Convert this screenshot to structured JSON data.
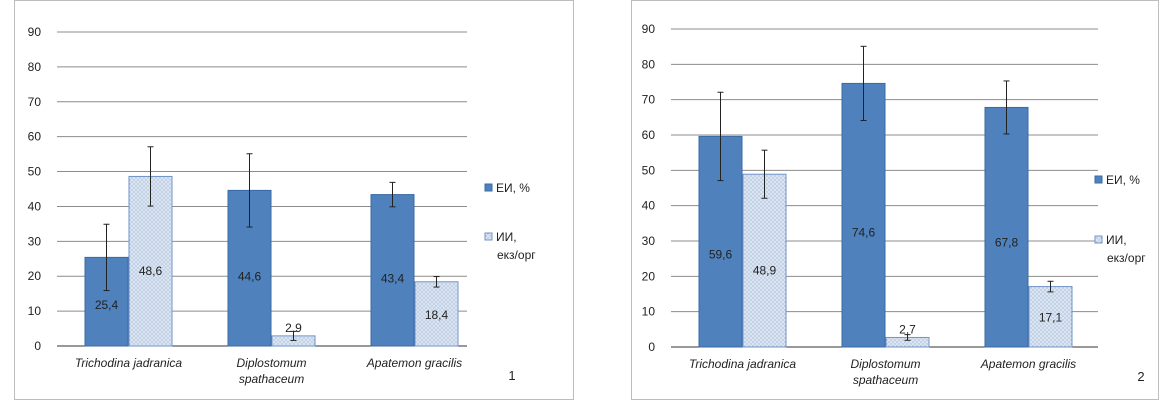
{
  "colors": {
    "fi": "#4f81bd",
    "fi_dark": "#3a6aa6",
    "ii": "#dbe5f1",
    "ii_border": "#6f93c8",
    "grid": "#8c8c8c",
    "axis": "#333333"
  },
  "chart_data": [
    {
      "type": "bar",
      "panel_label": "1",
      "categories": [
        [
          "Trichodina jadranica"
        ],
        [
          "Diplostomum",
          "spathaceum"
        ],
        [
          "Apatemon gracilis"
        ]
      ],
      "ylim": [
        0,
        90
      ],
      "yticks": [
        "0",
        "10",
        "20",
        "30",
        "40",
        "50",
        "60",
        "70",
        "80",
        "90"
      ],
      "grid": true,
      "legend_position": "right",
      "series": [
        {
          "name": [
            "ЕИ, %"
          ],
          "values": [
            25.4,
            44.6,
            43.4
          ],
          "labels": [
            "25,4",
            "44,6",
            "43,4"
          ],
          "error": [
            9.5,
            10.5,
            3.5
          ]
        },
        {
          "name": [
            "ИИ,",
            "екз/орг"
          ],
          "values": [
            48.6,
            2.9,
            18.4
          ],
          "labels": [
            "48,6",
            "2,9",
            "18,4"
          ],
          "error": [
            8.5,
            1.3,
            1.5
          ]
        }
      ]
    },
    {
      "type": "bar",
      "panel_label": "2",
      "categories": [
        [
          "Trichodina jadranica"
        ],
        [
          "Diplostomum",
          "spathaceum"
        ],
        [
          "Apatemon gracilis"
        ]
      ],
      "ylim": [
        0,
        90
      ],
      "yticks": [
        "0",
        "10",
        "20",
        "30",
        "40",
        "50",
        "60",
        "70",
        "80",
        "90"
      ],
      "grid": true,
      "legend_position": "right",
      "series": [
        {
          "name": [
            "ЕИ, %"
          ],
          "values": [
            59.6,
            74.6,
            67.8
          ],
          "labels": [
            "59,6",
            "74,6",
            "67,8"
          ],
          "error": [
            12.5,
            10.5,
            7.5
          ]
        },
        {
          "name": [
            "ИИ,",
            "екз/орг"
          ],
          "values": [
            48.9,
            2.7,
            17.1
          ],
          "labels": [
            "48,9",
            "2,7",
            "17,1"
          ],
          "error": [
            6.8,
            0.8,
            1.5
          ]
        }
      ]
    }
  ]
}
